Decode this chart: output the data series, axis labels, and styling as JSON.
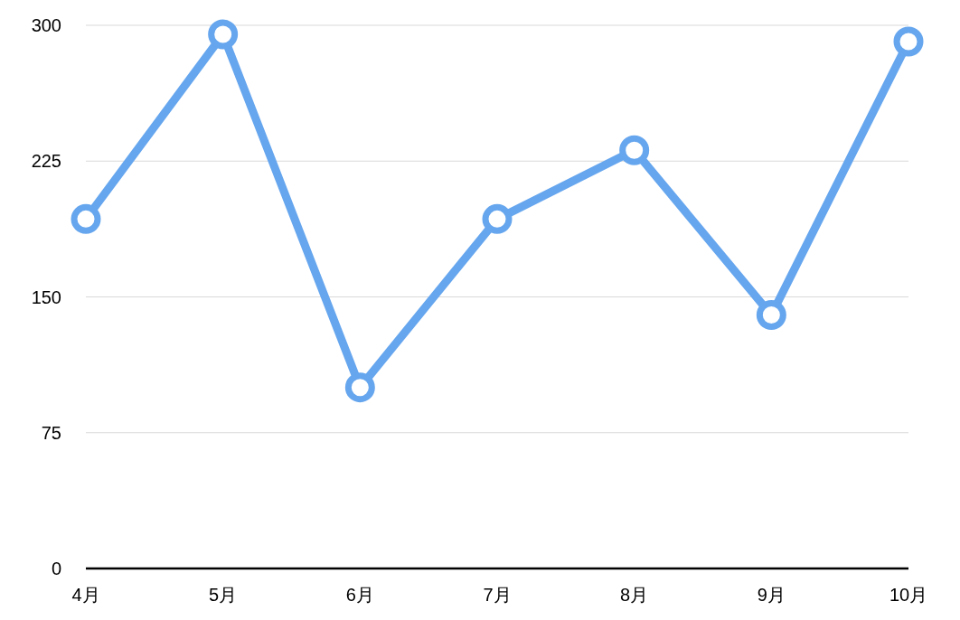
{
  "chart_data": {
    "type": "line",
    "categories": [
      "4月",
      "5月",
      "6月",
      "7月",
      "8月",
      "9月",
      "10月"
    ],
    "series": [
      {
        "color": "#66a6ee",
        "values": [
          193,
          295,
          100,
          193,
          231,
          140,
          291
        ]
      }
    ],
    "ylim": [
      0,
      300
    ],
    "yticks": [
      0,
      75,
      150,
      225,
      300
    ],
    "grid": "y",
    "marker": "circle",
    "line_style": "solid"
  }
}
